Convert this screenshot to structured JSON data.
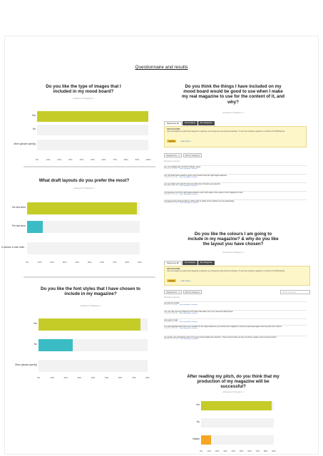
{
  "page_title": "Questionnaire and results",
  "colors": {
    "lime": "#c5cc28",
    "teal": "#3bbcc4",
    "orange": "#f5a623"
  },
  "q1": {
    "title": "Do you like the type of images that I included in my mood board?",
    "meta": "Answered: 8    Skipped: 1",
    "categories": [
      "Yes",
      "No",
      "Other (please specify)"
    ],
    "ticks": [
      "0%",
      "10%",
      "20%",
      "30%",
      "40%",
      "50%",
      "60%",
      "70%",
      "80%",
      "90%",
      "100%"
    ]
  },
  "q2": {
    "title": "What draft layouts do you prefer the most?",
    "meta": "Answered: 8    Skipped: 1",
    "categories": [
      "The first three",
      "The last three",
      "A mixture of both draft..."
    ],
    "ticks": [
      "0%",
      "10%",
      "20%",
      "30%",
      "40%",
      "50%",
      "60%",
      "70%",
      "80%",
      "90%"
    ]
  },
  "q3": {
    "title": "Do you like the font styles that I have chosen to include in my magazine?",
    "meta": "Answered: 8    Skipped: 1",
    "categories": [
      "Yes",
      "No",
      "Other (please specify)"
    ],
    "ticks": [
      "0%",
      "10%",
      "20%",
      "30%",
      "40%",
      "50%",
      "60%",
      "70%",
      "80%"
    ]
  },
  "q4": {
    "title": "Do you think the things I have included on my mood board would be good to use when I make my real magazine to use for the content of it, and why?",
    "meta": "Answered: 8    Skipped: 1",
    "tabs": [
      "Responses (8)",
      "Text Analysis",
      "My Categories"
    ],
    "pro": {
      "title": "PRO FEATURE",
      "text": "Use text analysis to search and categorize responses; see frequently used words and phrases. To use Text Analysis, upgrade to a GOLD or PLATINUM plan.",
      "button": "Upgrade",
      "link": "Learn more »"
    },
    "filters": [
      "Categorize as... ▾",
      "Filter by Category ▾"
    ],
    "showing": "Showing 8 responses",
    "responses": [
      {
        "text": "yes, it is realistic and consists of things i enjoy.",
        "date": "10/14/2014 9:26 AM"
      },
      {
        "text": "Yes I do think that it would be good, and it would reach the right target audience.",
        "date": "10/14/2014 8:49 PM"
      },
      {
        "text": "yes very bright and colourful and resembles lots of bands every day life.",
        "date": "10/14/2014 8:27 PM"
      },
      {
        "text": "Yes because it is for the right target audience and it will relate to the content of the magazine its self.",
        "date": "10/14/2014 7:52 PM"
      },
      {
        "text": "Yes because the target audience will be able to relate to the products you are advertising.",
        "date": "10/14/2014 12:37 PM"
      }
    ],
    "view_link": "View respondent's answers"
  },
  "q5": {
    "title": "Do you like the colours I am going to include in my magazine? & why do you like the layout you have chosen?",
    "meta": "Answered: 8    Skipped: 1",
    "tabs": [
      "Responses (8)",
      "Text Analysis",
      "My Categories"
    ],
    "pro": {
      "title": "PRO FEATURE",
      "text": "Use text analysis to search and categorize responses; see frequently used words and phrases. To use Text Analysis, upgrade to a GOLD or PLATINUM plan.",
      "button": "Upgrade",
      "link": "Learn more »"
    },
    "filters": [
      "Categorize as... ▾",
      "Filter by Category ▾"
    ],
    "search": "Search responses",
    "showing": "Showing 8 responses",
    "responses": [
      {
        "text": "yes and yes mostly",
        "date": "10/14/2014 9:26 AM"
      },
      {
        "text": "Yes i do, they are very bright and i find them fab aside it is a very neat and sharp layout.",
        "date": "10/14/2014 8:49 PM"
      },
      {
        "text": "very easy to read",
        "date": "10/14/2014 8:27 PM"
      },
      {
        "text": "it is well organised and looks more suitable for the target audience yes because the magazine is aimed at grime/teenagers and they like them colours",
        "date": "10/14/2014 7:52 PM"
      },
      {
        "text": "yes as they are contrasting and it is the genre being bright and colourful. I chose the first three as they suit those readers and i'd connect with it.",
        "date": "10/14/2014 12:37 PM"
      }
    ],
    "view_link": "View respondent's answers"
  },
  "q6": {
    "title": "After reading my pitch, do you think that my production of my magazine will be successful?",
    "meta": "Answered: 8    Skipped: 1",
    "categories": [
      "Yes",
      "No",
      "Maybe"
    ],
    "ticks": [
      "0%",
      "10%",
      "20%",
      "30%",
      "40%",
      "50%",
      "60%",
      "70%",
      "80%",
      "90%"
    ]
  },
  "chart_data": [
    {
      "type": "bar",
      "orientation": "horizontal",
      "title": "Do you like the type of images that I included in my mood board?",
      "categories": [
        "Yes",
        "No",
        "Other (please specify)"
      ],
      "values": [
        100,
        0,
        0
      ],
      "xlim": [
        0,
        100
      ],
      "unit": "%"
    },
    {
      "type": "bar",
      "orientation": "horizontal",
      "title": "What draft layouts do you prefer the most?",
      "categories": [
        "The first three",
        "The last three",
        "A mixture of both draft..."
      ],
      "values": [
        87.5,
        12.5,
        0
      ],
      "xlim": [
        0,
        90
      ],
      "unit": "%"
    },
    {
      "type": "bar",
      "orientation": "horizontal",
      "title": "Do you like the font styles that I have chosen to include in my magazine?",
      "categories": [
        "Yes",
        "No",
        "Other (please specify)"
      ],
      "values": [
        75,
        25,
        0
      ],
      "xlim": [
        0,
        80
      ],
      "unit": "%"
    },
    {
      "type": "bar",
      "orientation": "horizontal",
      "title": "After reading my pitch, do you think that my production of my magazine will be successful?",
      "categories": [
        "Yes",
        "No",
        "Maybe"
      ],
      "values": [
        87.5,
        0,
        12.5
      ],
      "xlim": [
        0,
        90
      ],
      "unit": "%"
    }
  ]
}
